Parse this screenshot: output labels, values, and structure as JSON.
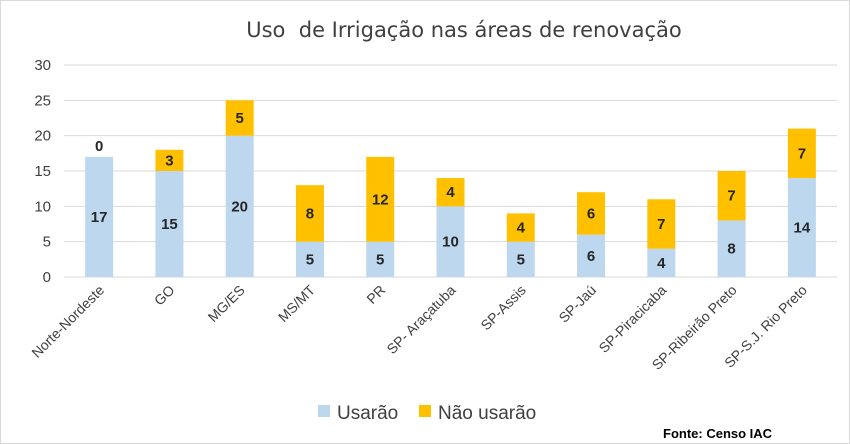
{
  "chart_data": {
    "type": "bar",
    "stacked": true,
    "title": "Uso  de Irrigação nas áreas de renovação",
    "categories": [
      "Norte-Nordeste",
      "GO",
      "MG/ES",
      "MS/MT",
      "PR",
      "SP- Araçatuba",
      "SP-Assis",
      "SP-Jaú",
      "SP-Piracicaba",
      "SP-Ribeirão Preto",
      "SP-S.J. Rio Preto"
    ],
    "series": [
      {
        "name": "Usarão",
        "color": "#bdd7ee",
        "values": [
          17,
          15,
          20,
          5,
          5,
          10,
          5,
          6,
          4,
          8,
          14
        ]
      },
      {
        "name": "Não usarão",
        "color": "#ffc000",
        "values": [
          0,
          3,
          5,
          8,
          12,
          4,
          4,
          6,
          7,
          7,
          7
        ]
      }
    ],
    "ylim": [
      0,
      30
    ],
    "yticks": [
      0,
      5,
      10,
      15,
      20,
      25,
      30
    ],
    "grid": true,
    "legend_position": "bottom",
    "source": "Fonte: Censo IAC"
  }
}
